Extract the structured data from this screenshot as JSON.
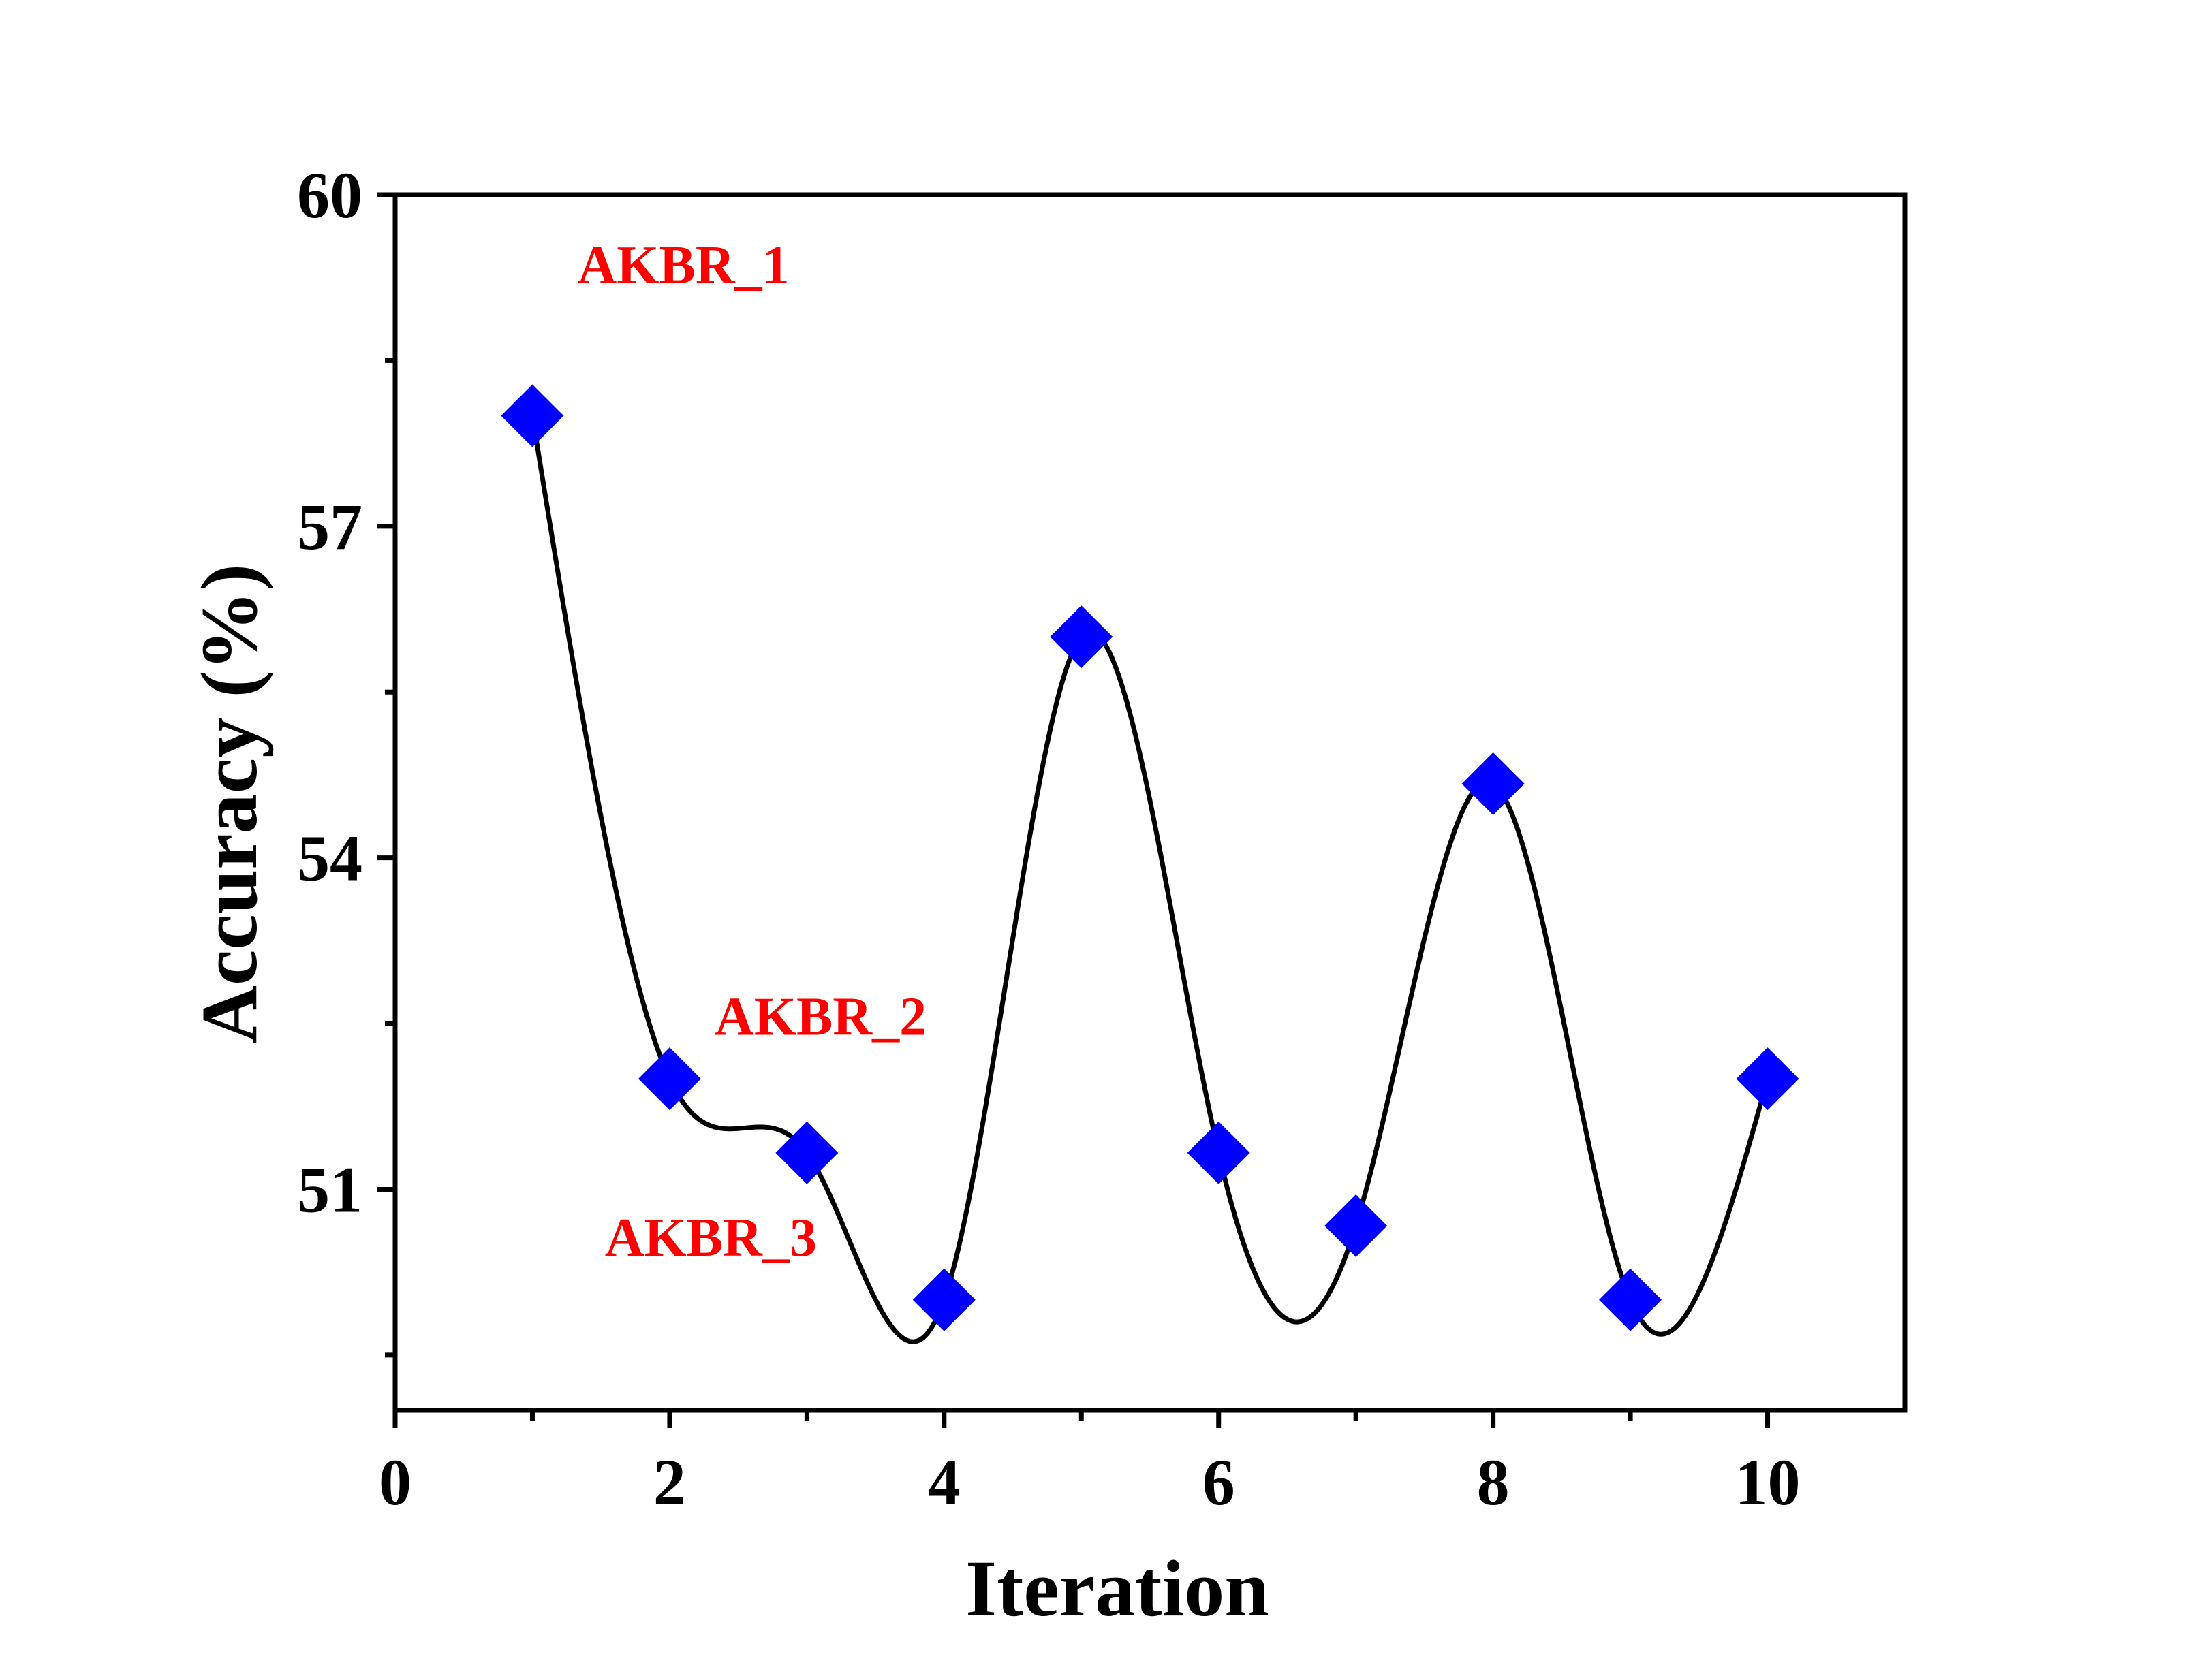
{
  "chart_data": {
    "type": "line",
    "title": "",
    "xlabel": "Iteration",
    "ylabel": "Accuracy (%)",
    "xlim": [
      0,
      11
    ],
    "ylim": [
      49,
      60
    ],
    "x_ticks": [
      0,
      2,
      4,
      6,
      8,
      10
    ],
    "x_tick_labels": [
      "0",
      "2",
      "4",
      "6",
      "8",
      "10"
    ],
    "x_minor_ticks": [
      1,
      3,
      5,
      7,
      9
    ],
    "y_ticks": [
      51,
      54,
      57,
      60
    ],
    "y_tick_labels": [
      "51",
      "54",
      "57",
      "60"
    ],
    "y_minor_ticks": [
      49.5,
      52.5,
      55.5,
      58.5
    ],
    "grid": false,
    "series": [
      {
        "x": [
          1,
          2,
          3,
          4,
          5,
          6,
          7,
          8,
          9,
          10
        ],
        "y": [
          58.0,
          52.0,
          51.33,
          50.0,
          56.0,
          51.33,
          50.67,
          54.67,
          50.0,
          52.0
        ],
        "marker": "diamond",
        "marker_color": "#0000FF",
        "line": "smooth spline",
        "line_color": "#000000"
      }
    ],
    "annotations": [
      {
        "text": "AKBR_1",
        "x": 2.1,
        "y": 59.2,
        "color": "#FF0000"
      },
      {
        "text": "AKBR_2",
        "x": 3.1,
        "y": 52.4,
        "color": "#FF0000"
      },
      {
        "text": "AKBR_3",
        "x": 2.3,
        "y": 50.4,
        "color": "#FF0000"
      }
    ]
  }
}
